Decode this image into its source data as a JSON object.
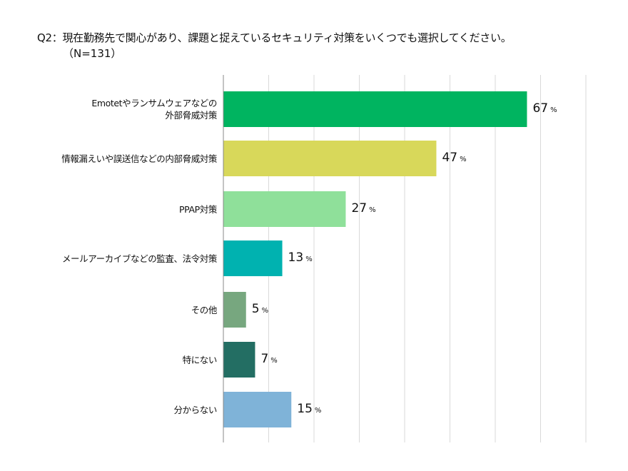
{
  "chart_data": {
    "type": "bar",
    "orientation": "horizontal",
    "title": "Q2：現在勤務先で関心があり、課題と捉えているセキュリティ対策をいくつでも選択してください。",
    "subtitle": "（N=131）",
    "categories": [
      "Emotetやランサムウェアなどの\n外部脅威対策",
      "情報漏えいや誤送信などの内部脅威対策",
      "PPAP対策",
      "メールアーカイブなどの監査、法令対策",
      "その他",
      "特にない",
      "分からない"
    ],
    "values": [
      67,
      47,
      27,
      13,
      5,
      7,
      15
    ],
    "unit": "%",
    "colors": [
      "#00b460",
      "#d8d85a",
      "#8fe09a",
      "#00b2b0",
      "#77a77f",
      "#236e63",
      "#7fb3d8"
    ],
    "xlim": [
      0,
      80
    ],
    "grid": true,
    "grid_step": 10
  }
}
